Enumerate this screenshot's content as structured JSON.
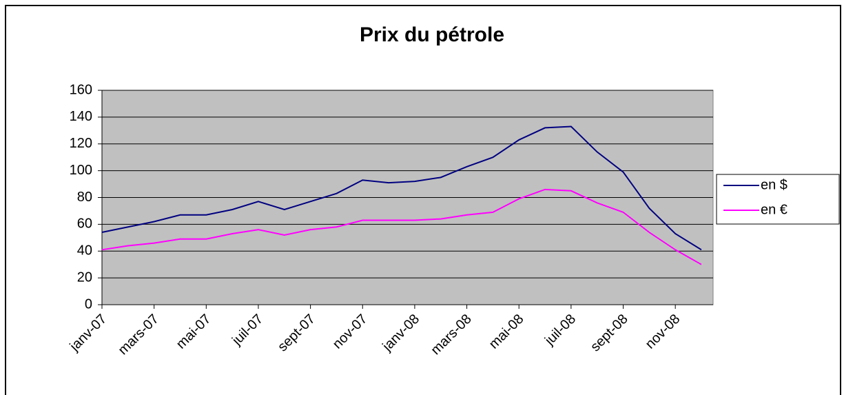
{
  "chart_data": {
    "type": "line",
    "title": "Prix du pétrole",
    "categories": [
      "janv-07",
      null,
      "mars-07",
      null,
      "mai-07",
      null,
      "juil-07",
      null,
      "sept-07",
      null,
      "nov-07",
      null,
      "janv-08",
      null,
      "mars-08",
      null,
      "mai-08",
      null,
      "juil-08",
      null,
      "sept-08",
      null,
      "nov-08",
      null
    ],
    "series": [
      {
        "name": "en $",
        "color": "#000080",
        "values": [
          54,
          58,
          62,
          67,
          67,
          71,
          77,
          71,
          77,
          83,
          93,
          91,
          92,
          95,
          103,
          110,
          123,
          132,
          133,
          114,
          99,
          72,
          53,
          41
        ]
      },
      {
        "name": "en €",
        "color": "#ff00ff",
        "values": [
          41,
          44,
          46,
          49,
          49,
          53,
          56,
          52,
          56,
          58,
          63,
          63,
          63,
          64,
          67,
          69,
          79,
          86,
          85,
          76,
          69,
          54,
          41,
          30
        ]
      }
    ],
    "ylim": [
      0,
      160
    ],
    "yticks": [
      0,
      20,
      40,
      60,
      80,
      100,
      120,
      140,
      160
    ],
    "grid": true,
    "legend": "right"
  }
}
